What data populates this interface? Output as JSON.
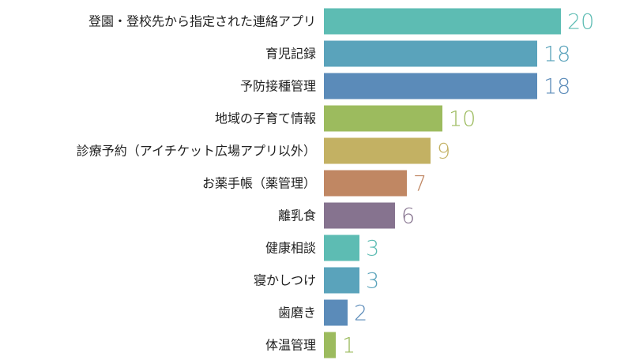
{
  "chart_data": {
    "type": "bar",
    "orientation": "horizontal",
    "title": "",
    "xlabel": "",
    "ylabel": "",
    "xlim": [
      0,
      20
    ],
    "grid": false,
    "categories": [
      "登園・登校先から指定された連絡アプリ",
      "育児記録",
      "予防接種管理",
      "地域の子育て情報",
      "診療予約（アイチケット広場アプリ以外）",
      "お薬手帳（薬管理）",
      "離乳食",
      "健康相談",
      "寝かしつけ",
      "歯磨き",
      "体温管理"
    ],
    "values": [
      20,
      18,
      18,
      10,
      9,
      7,
      6,
      3,
      3,
      2,
      1
    ],
    "colors": [
      "#5dbcb3",
      "#5aa3bb",
      "#5b8bb9",
      "#9cbb5e",
      "#c3b163",
      "#c08763",
      "#86738f",
      "#5dbcb3",
      "#5aa3bb",
      "#5b8bb9",
      "#9cbb5e"
    ]
  }
}
